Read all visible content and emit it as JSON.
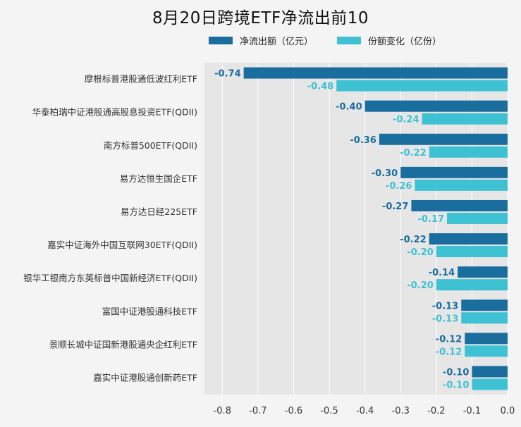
{
  "chart_data": {
    "type": "bar",
    "orientation": "horizontal",
    "title": "8月20日跨境ETF净流出前10",
    "categories": [
      "摩根标普港股通低波红利ETF",
      "华泰柏瑞中证港股通高股息投资ETF(QDII)",
      "南方标普500ETF(QDII)",
      "易方达恒生国企ETF",
      "易方达日经225ETF",
      "嘉实中证海外中国互联网30ETF(QDII)",
      "银华工银南方东英标普中国新经济ETF(QDII)",
      "富国中证港股通科技ETF",
      "景顺长城中证国新港股通央企红利ETF",
      "嘉实中证港股通创新药ETF"
    ],
    "series": [
      {
        "name": "净流出额（亿元）",
        "color": "#1a6e9e",
        "values": [
          -0.74,
          -0.4,
          -0.36,
          -0.3,
          -0.27,
          -0.22,
          -0.14,
          -0.13,
          -0.12,
          -0.1
        ],
        "labels": [
          "-0.74",
          "-0.40",
          "-0.36",
          "-0.30",
          "-0.27",
          "-0.22",
          "-0.14",
          "-0.13",
          "-0.12",
          "-0.10"
        ]
      },
      {
        "name": "份额变化（亿份）",
        "color": "#3ec1d3",
        "values": [
          -0.48,
          -0.24,
          -0.22,
          -0.26,
          -0.17,
          -0.2,
          -0.2,
          -0.13,
          -0.12,
          -0.1
        ],
        "labels": [
          "-0.48",
          "-0.24",
          "-0.22",
          "-0.26",
          "-0.17",
          "-0.20",
          "-0.20",
          "-0.13",
          "-0.12",
          "-0.10"
        ]
      }
    ],
    "xlim": [
      -0.85,
      0.0
    ],
    "xticks": [
      -0.8,
      -0.7,
      -0.6,
      -0.5,
      -0.4,
      -0.3,
      -0.2,
      -0.1,
      0.0
    ],
    "xtick_labels": [
      "-0.8",
      "-0.7",
      "-0.6",
      "-0.5",
      "-0.4",
      "-0.3",
      "-0.2",
      "-0.1",
      "0.0"
    ],
    "grid": true,
    "legend_position": "top"
  }
}
